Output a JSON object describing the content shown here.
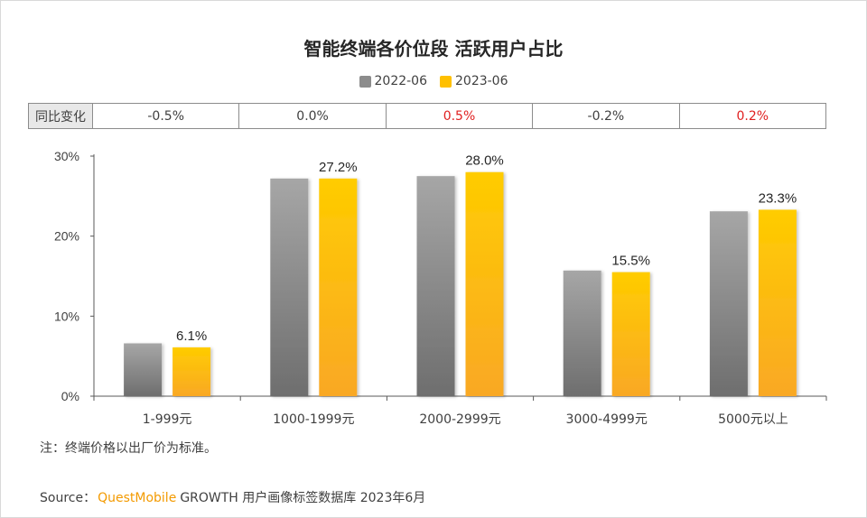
{
  "title": "智能终端各价位段 活跃用户占比",
  "legend": {
    "series_a": "2022-06",
    "series_b": "2023-06"
  },
  "colors": {
    "series_a": "#8c8c8c",
    "series_b": "#ffc000",
    "positive_change": "#e02020",
    "axis": "#404040"
  },
  "yoy_row": {
    "label": "同比变化",
    "values": [
      "-0.5%",
      "0.0%",
      "0.5%",
      "-0.2%",
      "0.2%"
    ]
  },
  "chart_data": {
    "type": "bar",
    "categories": [
      "1-999元",
      "1000-1999元",
      "2000-2999元",
      "3000-4999元",
      "5000元以上"
    ],
    "series": [
      {
        "name": "2022-06",
        "values": [
          6.6,
          27.2,
          27.5,
          15.7,
          23.1
        ],
        "labels": [
          "",
          "",
          "",
          "",
          ""
        ]
      },
      {
        "name": "2023-06",
        "values": [
          6.1,
          27.2,
          28.0,
          15.5,
          23.3
        ],
        "labels": [
          "6.1%",
          "27.2%",
          "28.0%",
          "15.5%",
          "23.3%"
        ]
      }
    ],
    "ylim": [
      0,
      30
    ],
    "yticks": [
      "0%",
      "10%",
      "20%",
      "30%"
    ],
    "ytick_values": [
      0,
      10,
      20,
      30
    ],
    "grid": false,
    "legend_position": "top"
  },
  "footer": {
    "note": "注：终端价格以出厂价为标准。",
    "source_label": "Source：",
    "source_brand": "QuestMobile",
    "source_text": "GROWTH 用户画像标签数据库 2023年6月"
  }
}
